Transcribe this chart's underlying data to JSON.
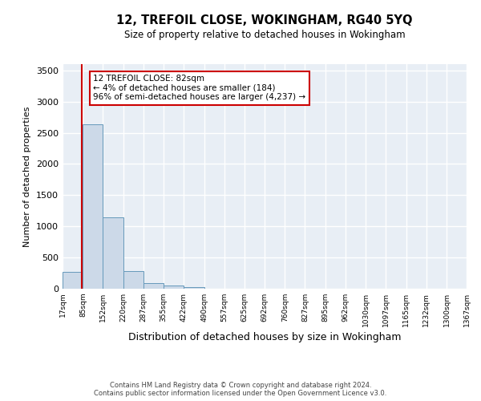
{
  "title": "12, TREFOIL CLOSE, WOKINGHAM, RG40 5YQ",
  "subtitle": "Size of property relative to detached houses in Wokingham",
  "xlabel": "Distribution of detached houses by size in Wokingham",
  "ylabel": "Number of detached properties",
  "property_size": 82,
  "annotation_line1": "12 TREFOIL CLOSE: 82sqm",
  "annotation_line2": "← 4% of detached houses are smaller (184)",
  "annotation_line3": "96% of semi-detached houses are larger (4,237) →",
  "footer_line1": "Contains HM Land Registry data © Crown copyright and database right 2024.",
  "footer_line2": "Contains public sector information licensed under the Open Government Licence v3.0.",
  "bar_color": "#ccd9e8",
  "bar_edge_color": "#6699bb",
  "annotation_box_color": "#cc0000",
  "vline_color": "#cc0000",
  "background_color": "#e8eef5",
  "grid_color": "#ffffff",
  "bin_edges": [
    17,
    85,
    152,
    220,
    287,
    355,
    422,
    490,
    557,
    625,
    692,
    760,
    827,
    895,
    962,
    1030,
    1097,
    1165,
    1232,
    1300,
    1367
  ],
  "bin_labels": [
    "17sqm",
    "85sqm",
    "152sqm",
    "220sqm",
    "287sqm",
    "355sqm",
    "422sqm",
    "490sqm",
    "557sqm",
    "625sqm",
    "692sqm",
    "760sqm",
    "827sqm",
    "895sqm",
    "962sqm",
    "1030sqm",
    "1097sqm",
    "1165sqm",
    "1232sqm",
    "1300sqm",
    "1367sqm"
  ],
  "bar_heights": [
    270,
    2630,
    1150,
    285,
    90,
    50,
    30,
    0,
    0,
    0,
    0,
    0,
    0,
    0,
    0,
    0,
    0,
    0,
    0,
    0
  ],
  "ylim": [
    0,
    3600
  ],
  "yticks": [
    0,
    500,
    1000,
    1500,
    2000,
    2500,
    3000,
    3500
  ]
}
